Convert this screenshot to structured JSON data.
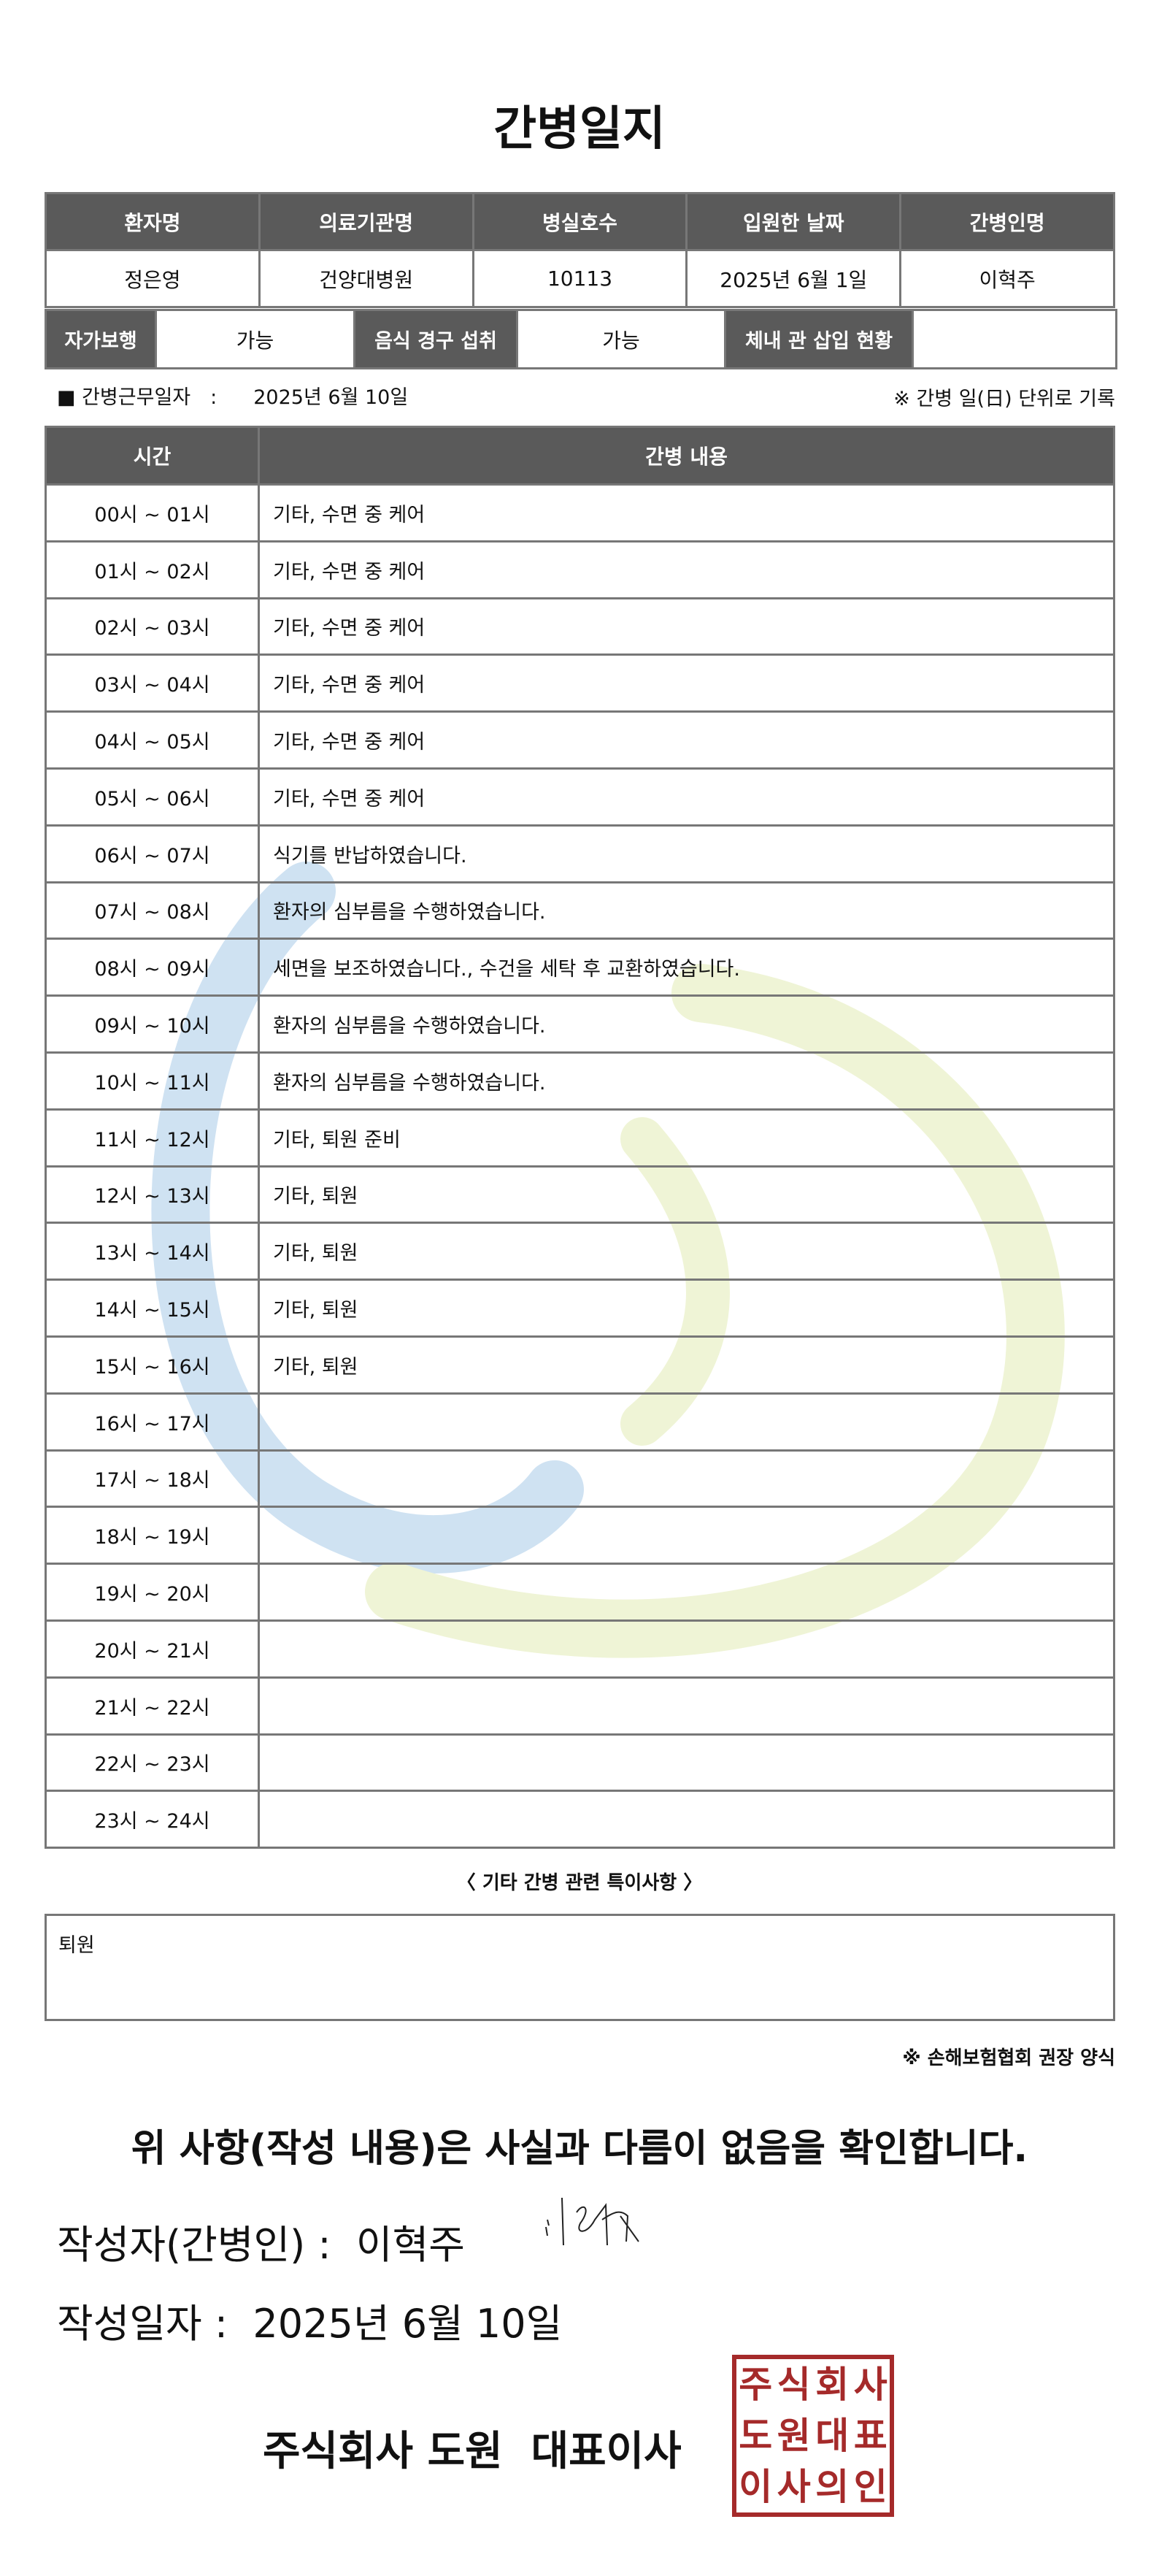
{
  "title": "간병일지",
  "info": {
    "headers": [
      "환자명",
      "의료기관명",
      "병실호수",
      "입원한 날짜",
      "간병인명"
    ],
    "values": [
      "정은영",
      "건양대병원",
      "10113",
      "2025년 6월 1일",
      "이혁주"
    ]
  },
  "status": {
    "walk_label": "자가보행",
    "walk_value": "가능",
    "eat_label": "음식 경구 섭취",
    "eat_value": "가능",
    "tube_label": "체내 관 삽입 현황",
    "tube_value": ""
  },
  "duty": {
    "label": "■ 간병근무일자　:",
    "value": "2025년 6월 10일",
    "unit_note": "※ 간병 일(日) 단위로 기록"
  },
  "log": {
    "headers": [
      "시간",
      "간병 내용"
    ],
    "rows": [
      [
        "00시 ~ 01시",
        "기타, 수면 중 케어"
      ],
      [
        "01시 ~ 02시",
        "기타, 수면 중 케어"
      ],
      [
        "02시 ~ 03시",
        "기타, 수면 중 케어"
      ],
      [
        "03시 ~ 04시",
        "기타, 수면 중 케어"
      ],
      [
        "04시 ~ 05시",
        "기타, 수면 중 케어"
      ],
      [
        "05시 ~ 06시",
        "기타, 수면 중 케어"
      ],
      [
        "06시 ~ 07시",
        "식기를 반납하였습니다."
      ],
      [
        "07시 ~ 08시",
        "환자의 심부름을 수행하였습니다."
      ],
      [
        "08시 ~ 09시",
        "세면을 보조하였습니다., 수건을 세탁 후 교환하였습니다."
      ],
      [
        "09시 ~ 10시",
        "환자의 심부름을 수행하였습니다."
      ],
      [
        "10시 ~ 11시",
        "환자의 심부름을 수행하였습니다."
      ],
      [
        "11시 ~ 12시",
        "기타, 퇴원 준비"
      ],
      [
        "12시 ~ 13시",
        "기타, 퇴원"
      ],
      [
        "13시 ~ 14시",
        "기타, 퇴원"
      ],
      [
        "14시 ~ 15시",
        "기타, 퇴원"
      ],
      [
        "15시 ~ 16시",
        "기타, 퇴원"
      ],
      [
        "16시 ~ 17시",
        ""
      ],
      [
        "17시 ~ 18시",
        ""
      ],
      [
        "18시 ~ 19시",
        ""
      ],
      [
        "19시 ~ 20시",
        ""
      ],
      [
        "20시 ~ 21시",
        ""
      ],
      [
        "21시 ~ 22시",
        ""
      ],
      [
        "22시 ~ 23시",
        ""
      ],
      [
        "23시 ~ 24시",
        ""
      ]
    ]
  },
  "notes": {
    "title": "〈 기타 간병 관련 특이사항 〉",
    "content": "퇴원"
  },
  "form_note": "※ 손해보험협회 권장 양식",
  "confirm": "위 사항(작성 내용)은 사실과 다름이 없음을 확인합니다.",
  "writer": {
    "label": "작성자(간병인) :",
    "name": "이혁주"
  },
  "written_date": {
    "label": "작성일자 :",
    "value": "2025년 6월 10일"
  },
  "company": "주식회사 도원  대표이사",
  "stamp": {
    "text": "주식회사도원대표이사의인",
    "color": "#a52a2a"
  },
  "watermark_colors": [
    "#c9dff0",
    "#eef3cf"
  ]
}
